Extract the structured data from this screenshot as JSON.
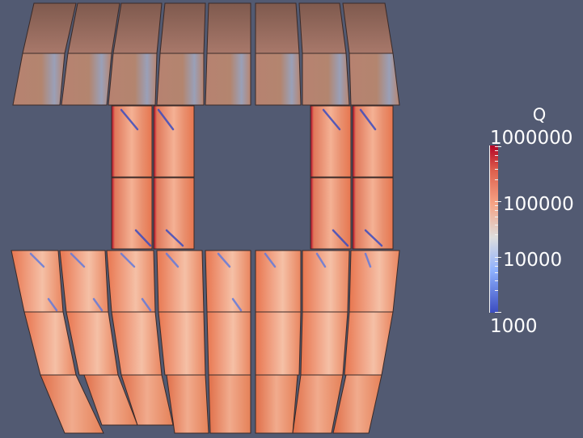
{
  "render": {
    "background": "#525a72",
    "colormap": [
      "#3b4cc0",
      "#aac7fd",
      "#dddddd",
      "#f7b89c",
      "#e8764f",
      "#b40426"
    ]
  },
  "legend": {
    "title": "Q",
    "scale": "log",
    "labels": [
      "1000000",
      "100000",
      "10000",
      "1000"
    ]
  }
}
